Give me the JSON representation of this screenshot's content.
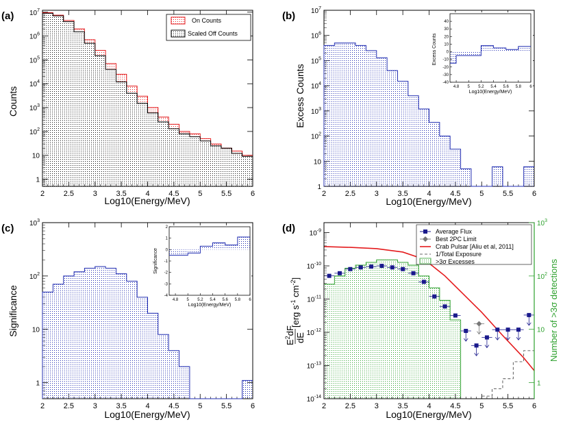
{
  "chart_data": [
    {
      "panel_label": "(a)",
      "type": "histogram",
      "xlabel": "Log10(Energy/MeV)",
      "ylabel": "Counts",
      "xlim": [
        2,
        6
      ],
      "ylim": [
        0.5,
        12000000
      ],
      "yscale": "log",
      "bin_edges": [
        2,
        2.2,
        2.4,
        2.6,
        2.8,
        3,
        3.2,
        3.4,
        3.6,
        3.8,
        4,
        4.2,
        4.4,
        4.6,
        4.8,
        5,
        5.2,
        5.4,
        5.6,
        5.8,
        6
      ],
      "x_ticks": [
        "2",
        "2.5",
        "3",
        "3.5",
        "4",
        "4.5",
        "5",
        "5.5",
        "6"
      ],
      "y_ticks": [
        {
          "value": 1,
          "base": "1",
          "exp": ""
        },
        {
          "value": 10,
          "base": "10",
          "exp": ""
        },
        {
          "value": 100,
          "base": "10",
          "exp": "2"
        },
        {
          "value": 1000,
          "base": "10",
          "exp": "3"
        },
        {
          "value": 10000,
          "base": "10",
          "exp": "4"
        },
        {
          "value": 100000,
          "base": "10",
          "exp": "5"
        },
        {
          "value": 1000000,
          "base": "10",
          "exp": "6"
        },
        {
          "value": 10000000,
          "base": "10",
          "exp": "7"
        }
      ],
      "legend_position": "top-right",
      "series": [
        {
          "name": "On Counts",
          "color": "#e41a1c",
          "values": [
            9500000,
            7500000,
            4500000,
            2000000,
            700000,
            250000,
            70000,
            25000,
            8000,
            3000,
            1000,
            400,
            200,
            100,
            80,
            50,
            30,
            20,
            15,
            10
          ]
        },
        {
          "name": "Scaled Off Counts",
          "color": "#000000",
          "values": [
            9000000,
            7000000,
            4000000,
            1500000,
            500000,
            150000,
            40000,
            12000,
            4000,
            1500,
            600,
            250,
            130,
            80,
            60,
            40,
            25,
            20,
            12,
            9
          ]
        }
      ]
    },
    {
      "panel_label": "(b)",
      "type": "histogram",
      "xlabel": "Log10(Energy/MeV)",
      "ylabel": "Excess Counts",
      "xlim": [
        2,
        6
      ],
      "ylim": [
        1,
        10000000
      ],
      "yscale": "log",
      "bin_edges": [
        2,
        2.2,
        2.4,
        2.6,
        2.8,
        3,
        3.2,
        3.4,
        3.6,
        3.8,
        4,
        4.2,
        4.4,
        4.6,
        4.8,
        5,
        5.2,
        5.4,
        5.6,
        5.8,
        6
      ],
      "x_ticks": [
        "2",
        "2.5",
        "3",
        "3.5",
        "4",
        "4.5",
        "5",
        "5.5",
        "6"
      ],
      "y_ticks": [
        {
          "value": 1,
          "base": "1",
          "exp": ""
        },
        {
          "value": 10,
          "base": "10",
          "exp": ""
        },
        {
          "value": 100,
          "base": "10",
          "exp": "2"
        },
        {
          "value": 1000,
          "base": "10",
          "exp": "3"
        },
        {
          "value": 10000,
          "base": "10",
          "exp": "4"
        },
        {
          "value": 100000,
          "base": "10",
          "exp": "5"
        },
        {
          "value": 1000000,
          "base": "10",
          "exp": "6"
        },
        {
          "value": 10000000,
          "base": "10",
          "exp": "7"
        }
      ],
      "series": [
        {
          "color": "#1f2bb0",
          "values": [
            400000,
            500000,
            500000,
            400000,
            250000,
            130000,
            40000,
            15000,
            4000,
            1200,
            350,
            100,
            30,
            5,
            0,
            0,
            6,
            0,
            0,
            6
          ]
        }
      ],
      "inset": {
        "xlabel": "Log10(Energy/MeV)",
        "ylabel": "Excess Counts",
        "xlim": [
          4.7,
          6
        ],
        "ylim": [
          -40,
          50
        ],
        "x_ticks": [
          4.8,
          5,
          5.2,
          5.4,
          5.6,
          5.8,
          6
        ],
        "y_ticks": [
          -40,
          -30,
          -20,
          -10,
          0,
          10,
          20,
          30,
          40
        ],
        "bin_edges": [
          4.7,
          4.8,
          5,
          5.2,
          5.4,
          5.6,
          5.8,
          6
        ],
        "values": [
          -15,
          -5,
          -5,
          8,
          5,
          3,
          7
        ]
      }
    },
    {
      "panel_label": "(c)",
      "type": "histogram",
      "xlabel": "Log10(Energy/MeV)",
      "ylabel": "Significance",
      "xlim": [
        2,
        6
      ],
      "ylim": [
        0.5,
        1000
      ],
      "yscale": "log",
      "bin_edges": [
        2,
        2.2,
        2.4,
        2.6,
        2.8,
        3,
        3.2,
        3.4,
        3.6,
        3.8,
        4,
        4.2,
        4.4,
        4.6,
        4.8,
        5,
        5.2,
        5.4,
        5.6,
        5.8,
        6
      ],
      "x_ticks": [
        "2",
        "2.5",
        "3",
        "3.5",
        "4",
        "4.5",
        "5",
        "5.5",
        "6"
      ],
      "y_ticks": [
        {
          "value": 1,
          "base": "1",
          "exp": ""
        },
        {
          "value": 10,
          "base": "10",
          "exp": ""
        },
        {
          "value": 100,
          "base": "10",
          "exp": "2"
        },
        {
          "value": 1000,
          "base": "10",
          "exp": "3"
        }
      ],
      "series": [
        {
          "color": "#1f2bb0",
          "values": [
            50,
            70,
            100,
            120,
            140,
            150,
            140,
            110,
            80,
            40,
            20,
            8,
            4,
            2,
            0,
            0,
            0,
            0,
            0,
            1.1
          ]
        }
      ],
      "inset": {
        "xlabel": "Log10(Energy/MeV)",
        "ylabel": "Significance",
        "xlim": [
          4.7,
          6
        ],
        "ylim": [
          -4,
          2
        ],
        "x_ticks": [
          4.8,
          5,
          5.2,
          5.4,
          5.6,
          5.8,
          6
        ],
        "y_ticks": [
          -4,
          -3,
          -2,
          -1,
          0,
          1,
          2
        ],
        "bin_edges": [
          4.7,
          4.8,
          5,
          5.2,
          5.4,
          5.6,
          5.8,
          6
        ],
        "values": [
          -0.5,
          -0.5,
          -0.3,
          0.3,
          0.6,
          0.4,
          1.1
        ]
      }
    },
    {
      "panel_label": "(d)",
      "type": "scatter+line+histogram",
      "xlabel": "Log10(Energy/MeV)",
      "ylabel_parts": {
        "line1_pre": "E",
        "line1_sup": "2",
        "line1_post": "dF",
        "line2": "dE",
        "units": "[erg s",
        "units_sup1": "-1",
        "units_mid": " cm",
        "units_sup2": "-2",
        "units_end": "]"
      },
      "ylabel_right": "Number of >3σ detections",
      "right_axis_color": "#2ca02c",
      "xlim": [
        2,
        6
      ],
      "ylim": [
        1e-14,
        2e-09
      ],
      "ylim_right": [
        0.5,
        1000
      ],
      "x_ticks": [
        "2",
        "2.5",
        "3",
        "3.5",
        "4",
        "4.5",
        "5",
        "5.5",
        "6"
      ],
      "y_ticks": [
        {
          "value": 1e-14,
          "base": "10",
          "exp": "-14"
        },
        {
          "value": 1e-13,
          "base": "10",
          "exp": "-13"
        },
        {
          "value": 1e-12,
          "base": "10",
          "exp": "-12"
        },
        {
          "value": 1e-11,
          "base": "10",
          "exp": "-11"
        },
        {
          "value": 1e-10,
          "base": "10",
          "exp": "-10"
        },
        {
          "value": 1e-09,
          "base": "10",
          "exp": "-9"
        }
      ],
      "y_ticks_right": [
        {
          "value": 1,
          "base": "1",
          "exp": ""
        },
        {
          "value": 10,
          "base": "10",
          "exp": ""
        },
        {
          "value": 100,
          "base": "10",
          "exp": "2"
        },
        {
          "value": 1000,
          "base": "10",
          "exp": "3"
        }
      ],
      "legend_position": "top-right",
      "legend": [
        "Average Flux",
        "Best 2PC Limit",
        "Crab Pulsar [Aliu et al, 2011]",
        "1/Total Exposure",
        ">3σ Excesses"
      ],
      "average_flux": {
        "color": "#1a1a8c",
        "x": [
          2.1,
          2.3,
          2.5,
          2.7,
          2.9,
          3.1,
          3.3,
          3.5,
          3.7,
          3.9,
          4.1,
          4.3,
          4.5,
          4.7,
          4.9,
          5.1,
          5.3,
          5.5,
          5.7,
          5.9
        ],
        "y": [
          5e-11,
          6e-11,
          8e-11,
          9e-11,
          9.5e-11,
          1e-10,
          9e-11,
          8e-11,
          6e-11,
          3.3e-11,
          1.2e-11,
          6e-12,
          3.2e-12,
          1.1e-12,
          4e-13,
          7e-13,
          1.2e-12,
          1.2e-12,
          1.2e-12,
          3.3e-12
        ],
        "upper_limit": [
          false,
          false,
          false,
          false,
          false,
          false,
          false,
          false,
          false,
          false,
          false,
          false,
          false,
          true,
          true,
          true,
          true,
          true,
          true,
          true
        ]
      },
      "best_2pc_limit": {
        "color": "#777777",
        "x": [
          4.95
        ],
        "y": [
          1.8e-12
        ]
      },
      "crab_pulsar": {
        "color": "#e41a1c",
        "x": [
          2,
          2.5,
          3,
          3.5,
          3.8,
          4,
          4.3,
          4.6,
          5,
          5.4,
          5.8,
          6
        ],
        "y": [
          3.8e-10,
          3.6e-10,
          3.3e-10,
          2.6e-10,
          1.8e-10,
          1.2e-10,
          5e-11,
          1.7e-11,
          4e-12,
          8e-13,
          1.7e-13,
          7e-14
        ]
      },
      "total_exposure": {
        "color": "#333333",
        "bin_edges": [
          4.6,
          4.8,
          5,
          5.2,
          5.4,
          5.6,
          5.8,
          6
        ],
        "values": [
          1e-14,
          1e-14,
          1.2e-14,
          2e-14,
          4e-14,
          1.3e-13,
          2.8e-13
        ]
      },
      "excesses": {
        "color": "#2ca02c",
        "bin_edges": [
          2,
          2.2,
          2.4,
          2.6,
          2.8,
          3,
          3.2,
          3.4,
          3.6,
          3.8,
          4,
          4.2,
          4.4,
          4.6,
          4.8,
          5,
          5.2,
          5.4,
          5.6,
          5.8,
          6
        ],
        "values": [
          70,
          100,
          140,
          160,
          180,
          200,
          200,
          180,
          160,
          100,
          60,
          35,
          15,
          0,
          0,
          0,
          0,
          0,
          0,
          0
        ]
      }
    }
  ]
}
